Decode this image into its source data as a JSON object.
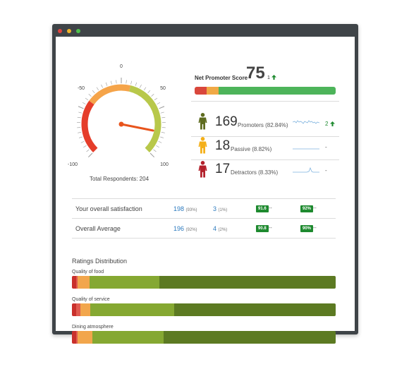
{
  "gauge": {
    "tick_labels": [
      "0",
      "-50",
      "50",
      "-100",
      "100"
    ],
    "value": 75,
    "min": -100,
    "max": 100,
    "colors": {
      "red": "#e53d2a",
      "orange": "#f5a44a",
      "green": "#b8c84a",
      "needle": "#e8541c"
    }
  },
  "respondents_label": "Total Respondents: 204",
  "nps": {
    "label": "Net Promoter Score",
    "score": "75",
    "delta": "1",
    "up_icon": "arrow-up-icon",
    "segments": [
      {
        "fraction": 0.083,
        "color": "#d9473c"
      },
      {
        "fraction": 0.088,
        "color": "#f0a946"
      },
      {
        "fraction": 0.829,
        "color": "#4db45a"
      }
    ]
  },
  "groups": [
    {
      "count": "169",
      "label": "Promoters (82.84%)",
      "delta": "2",
      "icon": "person-icon",
      "color": "#5e6b1f",
      "trend": "up"
    },
    {
      "count": "18",
      "label": "Passive (8.82%)",
      "delta": "-",
      "icon": "person-icon",
      "color": "#f4b01a",
      "trend": "flat"
    },
    {
      "count": "17",
      "label": "Detractors  (8.33%)",
      "delta": "-",
      "icon": "person-icon",
      "color": "#b3212c",
      "trend": "flat"
    }
  ],
  "table": [
    {
      "label": "Your overall satisfaction",
      "n1": "198",
      "p1": "(93%)",
      "n2": "3",
      "p2": "(1%)",
      "b1": "91.6",
      "b1d": "--",
      "b2": "92%",
      "b2d": "--"
    },
    {
      "label": "Overall Average",
      "n1": "196",
      "p1": "(92%)",
      "n2": "4",
      "p2": "(2%)",
      "b1": "90.8",
      "b1d": "--",
      "b2": "90%",
      "b2d": "--"
    }
  ],
  "distribution": {
    "title": "Ratings Distribution",
    "colors": [
      "#c9302c",
      "#e05a4e",
      "#f2a64c",
      "#85a832",
      "#5c7a22"
    ],
    "items": [
      {
        "label": "Quality of food",
        "fractions": [
          0.015,
          0.007,
          0.045,
          0.265,
          0.668
        ]
      },
      {
        "label": "Quality of service",
        "fractions": [
          0.015,
          0.018,
          0.036,
          0.318,
          0.613
        ]
      },
      {
        "label": "Dining atmosphere",
        "fractions": [
          0.015,
          0.007,
          0.056,
          0.27,
          0.652
        ]
      }
    ]
  }
}
